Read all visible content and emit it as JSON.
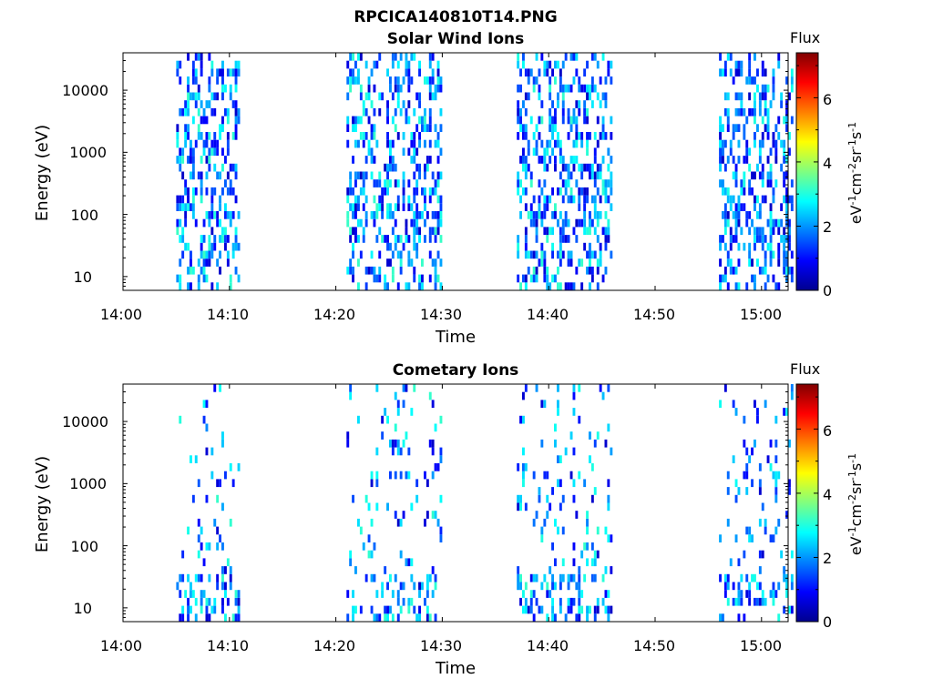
{
  "figure": {
    "title": "RPCICA140810T14.PNG"
  },
  "colorbar": {
    "title": "Flux",
    "ticks": [
      "0",
      "2",
      "4",
      "6"
    ],
    "range": [
      0,
      7.4
    ],
    "colormap": "jet",
    "unit": "eV-1cm-2sr-1s-1"
  },
  "chart_data": [
    {
      "type": "heatmap",
      "title": "Solar Wind Ions",
      "xlabel": "Time",
      "ylabel": "Energy (eV)",
      "x_tick_labels": [
        "14:00",
        "14:10",
        "14:20",
        "14:30",
        "14:40",
        "14:50",
        "15:00"
      ],
      "y_tick_labels": [
        "10",
        "100",
        "1000",
        "10000"
      ],
      "y_scale": "log",
      "ylim": [
        6,
        40000
      ],
      "colorbar_label": "eV-1cm-2sr-1s-1",
      "colorbar_title": "Flux",
      "colorbar_range": [
        0,
        7.4
      ],
      "data_segments": [
        {
          "start": "14:05",
          "end": "14:11",
          "values_range": [
            0.5,
            3.2
          ]
        },
        {
          "start": "14:21",
          "end": "14:30",
          "values_range": [
            0.5,
            3.2
          ]
        },
        {
          "start": "14:37",
          "end": "14:46",
          "values_range": [
            0.5,
            3.2
          ]
        },
        {
          "start": "14:56",
          "end": "15:03",
          "values_range": [
            0.5,
            3.0
          ]
        }
      ]
    },
    {
      "type": "heatmap",
      "title": "Cometary Ions",
      "xlabel": "Time",
      "ylabel": "Energy (eV)",
      "x_tick_labels": [
        "14:00",
        "14:10",
        "14:20",
        "14:30",
        "14:40",
        "14:50",
        "15:00"
      ],
      "y_tick_labels": [
        "10",
        "100",
        "1000",
        "10000"
      ],
      "y_scale": "log",
      "ylim": [
        6,
        40000
      ],
      "colorbar_label": "eV-1cm-2sr-1s-1",
      "colorbar_title": "Flux",
      "colorbar_range": [
        0,
        7.4
      ],
      "data_segments": [
        {
          "start": "14:05",
          "end": "14:11",
          "values_range": [
            0.5,
            3.2
          ]
        },
        {
          "start": "14:21",
          "end": "14:30",
          "values_range": [
            0.5,
            3.2
          ]
        },
        {
          "start": "14:37",
          "end": "14:46",
          "values_range": [
            0.5,
            3.2
          ]
        },
        {
          "start": "14:56",
          "end": "15:03",
          "values_range": [
            0.5,
            3.0
          ]
        }
      ]
    }
  ]
}
